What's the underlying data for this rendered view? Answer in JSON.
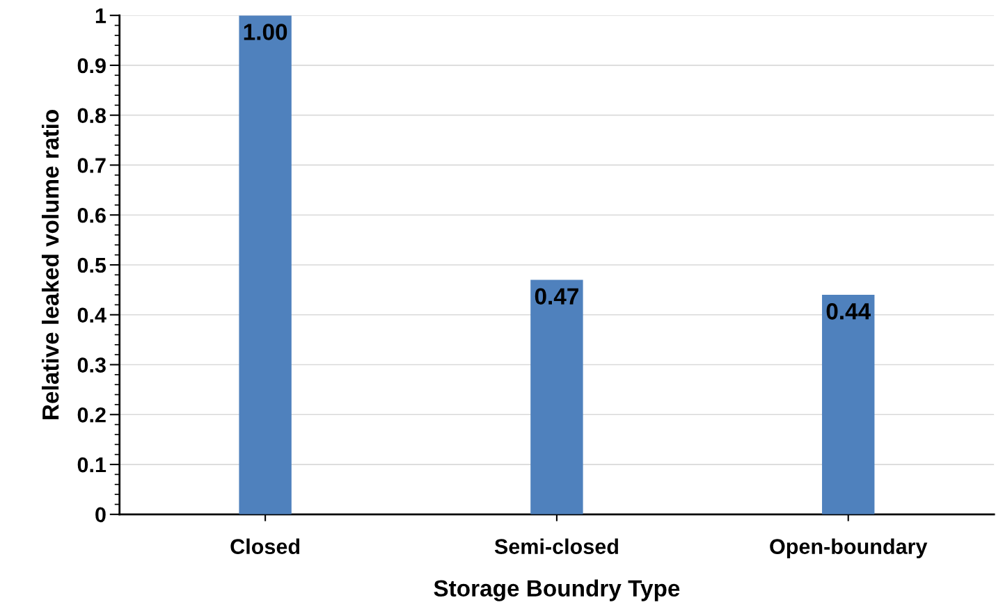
{
  "chart_data": {
    "type": "bar",
    "xlabel": "Storage Boundry Type",
    "ylabel": "Relative leaked volume ratio",
    "categories": [
      "Closed",
      "Semi-closed",
      "Open-boundary"
    ],
    "values": [
      1.0,
      0.47,
      0.44
    ],
    "value_labels": [
      "1.00",
      "0.47",
      "0.44"
    ],
    "color": "#4f81bd",
    "ylim": [
      0,
      1
    ],
    "yticks": [
      0,
      0.1,
      0.2,
      0.3,
      0.4,
      0.5,
      0.6,
      0.7,
      0.8,
      0.9,
      1,
      {
        "value": 0.02,
        "label": null
      },
      {
        "value": 0.04,
        "label": null
      },
      {
        "value": 0.06,
        "label": null
      },
      {
        "value": 0.08,
        "label": null
      },
      {
        "value": 0.12,
        "label": null
      },
      {
        "value": 0.14,
        "label": null
      },
      {
        "value": 0.16,
        "label": null
      },
      {
        "value": 0.18,
        "label": null
      },
      {
        "value": 0.22,
        "label": null
      },
      {
        "value": 0.24,
        "label": null
      },
      {
        "value": 0.26,
        "label": null
      },
      {
        "value": 0.28,
        "label": null
      },
      {
        "value": 0.32,
        "label": null
      },
      {
        "value": 0.34,
        "label": null
      },
      {
        "value": 0.36,
        "label": null
      },
      {
        "value": 0.38,
        "label": null
      },
      {
        "value": 0.42,
        "label": null
      },
      {
        "value": 0.44,
        "label": null
      },
      {
        "value": 0.46,
        "label": null
      },
      {
        "value": 0.48,
        "label": null
      },
      {
        "value": 0.52,
        "label": null
      },
      {
        "value": 0.54,
        "label": null
      },
      {
        "value": 0.56,
        "label": null
      },
      {
        "value": 0.58,
        "label": null
      },
      {
        "value": 0.62,
        "label": null
      },
      {
        "value": 0.64,
        "label": null
      },
      {
        "value": 0.66,
        "label": null
      },
      {
        "value": 0.68,
        "label": null
      },
      {
        "value": 0.72,
        "label": null
      },
      {
        "value": 0.74,
        "label": null
      },
      {
        "value": 0.76,
        "label": null
      },
      {
        "value": 0.78,
        "label": null
      },
      {
        "value": 0.82,
        "label": null
      },
      {
        "value": 0.84,
        "label": null
      },
      {
        "value": 0.86,
        "label": null
      },
      {
        "value": 0.88,
        "label": null
      },
      {
        "value": 0.92,
        "label": null
      },
      {
        "value": 0.94,
        "label": null
      },
      {
        "value": 0.96,
        "label": null
      },
      {
        "value": 0.98,
        "label": null
      }
    ],
    "grid": "y",
    "legend": false
  }
}
